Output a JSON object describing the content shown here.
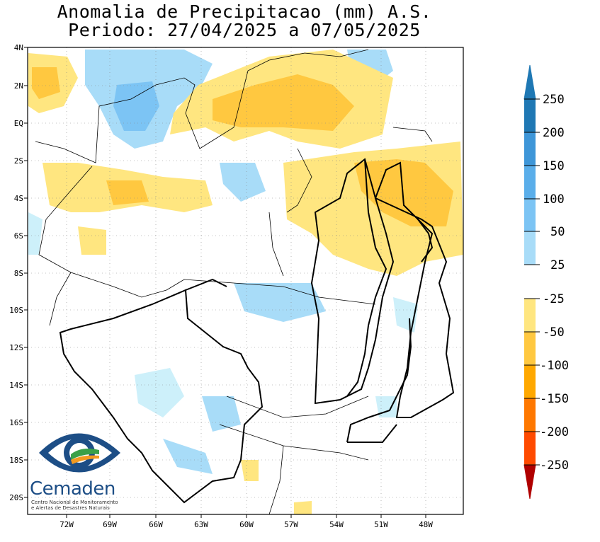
{
  "title": {
    "line1": "Anomalia de Precipitacao (mm) A.S.",
    "line2": "Periodo: 27/04/2025 a 07/05/2025"
  },
  "map": {
    "lat_labels": [
      "4N",
      "2N",
      "EQ",
      "2S",
      "4S",
      "6S",
      "8S",
      "10S",
      "12S",
      "14S",
      "16S",
      "18S",
      "20S"
    ],
    "lon_labels": [
      "72W",
      "69W",
      "66W",
      "63W",
      "60W",
      "57W",
      "54W",
      "51W",
      "48W"
    ],
    "extent": {
      "lon_min": -74.5,
      "lon_max": -46,
      "lat_min": -21,
      "lat_max": 4
    }
  },
  "colorbar": {
    "labels": [
      "250",
      "200",
      "150",
      "100",
      "50",
      "25",
      "-25",
      "-50",
      "-100",
      "-150",
      "-200",
      "-250"
    ],
    "colors_top": [
      "#1f78b4",
      "#3e96d8",
      "#5aaeea",
      "#7cc4f4",
      "#a8dcf8",
      "#cdf0fa"
    ],
    "colors_bottom": [
      "#ffe680",
      "#ffc840",
      "#ffa800",
      "#ff7800",
      "#ff4a00",
      "#cc1010"
    ],
    "arrow_top_color": "#1f78b4",
    "arrow_bottom_color": "#b00000"
  },
  "logo": {
    "name": "Cemaden",
    "subtitle_line1": "Centro Nacional de Monitoramento",
    "subtitle_line2": "e Alertas de Desastres Naturais"
  }
}
